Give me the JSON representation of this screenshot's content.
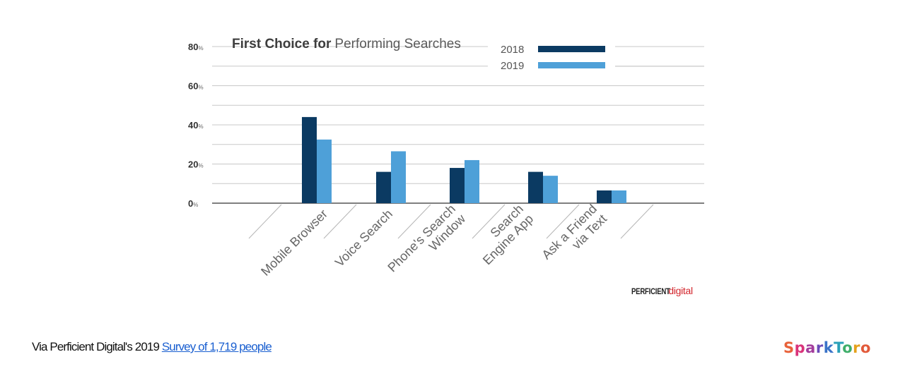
{
  "chart_data": {
    "type": "bar",
    "title": {
      "bold": "First Choice for",
      "light": "Performing Searches"
    },
    "categories": [
      [
        "Mobile Browser"
      ],
      [
        "Voice Search"
      ],
      [
        "Phone's Search",
        "Window"
      ],
      [
        "Search",
        "Engine App"
      ],
      [
        "Ask a Friend",
        "via Text"
      ]
    ],
    "series": [
      {
        "name": "2018",
        "color": "#0b3a62",
        "values": [
          44,
          16,
          18,
          16,
          6.5
        ]
      },
      {
        "name": "2019",
        "color": "#4ea0d8",
        "values": [
          32.5,
          26.5,
          22,
          14,
          6.5
        ]
      }
    ],
    "ylim": [
      0,
      80
    ],
    "yticks": [
      0,
      20,
      40,
      60,
      80
    ],
    "ytick_suffix": "%",
    "grid": true,
    "legend_position": "top-right"
  },
  "brand": {
    "perficient_prefix": "PERFICIENT",
    "perficient_suffix": "digital"
  },
  "caption": {
    "prefix": "Via Perficient Digital's 2019 ",
    "link_text": "Survey of 1,719 people"
  },
  "footer_logo": {
    "text": "SparkToro",
    "colors": [
      "#e8623a",
      "#d9337a",
      "#a33d9c",
      "#6a4bb8",
      "#3a73c8",
      "#2aa0b8",
      "#3fae6a",
      "#e5a11c",
      "#e25a3a"
    ]
  }
}
